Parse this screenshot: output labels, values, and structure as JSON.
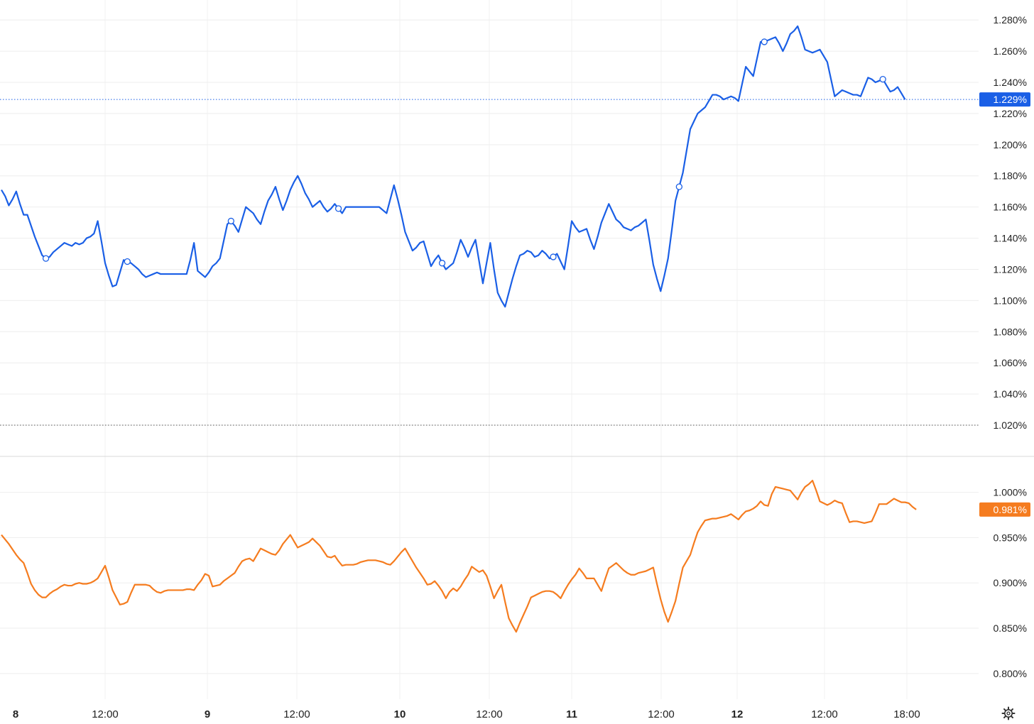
{
  "chart_data": [
    {
      "type": "line",
      "title": "",
      "xlabel": "",
      "ylabel": "",
      "ylim": [
        1.01,
        1.286
      ],
      "y_ticks": [
        "1.280%",
        "1.260%",
        "1.240%",
        "1.220%",
        "1.200%",
        "1.180%",
        "1.160%",
        "1.140%",
        "1.120%",
        "1.100%",
        "1.080%",
        "1.060%",
        "1.040%",
        "1.020%"
      ],
      "grid": true,
      "legend": "none",
      "reference_lines": [
        1.229,
        1.02
      ],
      "last_value_label": "1.229%",
      "color": "#1a5fe6",
      "series": [
        {
          "values": [
            1.171,
            1.167,
            1.161,
            1.165,
            1.17,
            1.162,
            1.155,
            1.155,
            1.148,
            1.141,
            1.135,
            1.129,
            1.127,
            1.128,
            1.131,
            1.133,
            1.135,
            1.137,
            1.136,
            1.135,
            1.137,
            1.136,
            1.137,
            1.14,
            1.141,
            1.143,
            1.151,
            1.138,
            1.124,
            1.116,
            1.109,
            1.11,
            1.118,
            1.126,
            1.125,
            1.124,
            1.122,
            1.12,
            1.117,
            1.115,
            1.116,
            1.117,
            1.118,
            1.117,
            1.117,
            1.117,
            1.117,
            1.117,
            1.117,
            1.117,
            1.117,
            1.126,
            1.137,
            1.119,
            1.117,
            1.115,
            1.118,
            1.122,
            1.124,
            1.127,
            1.138,
            1.149,
            1.151,
            1.148,
            1.144,
            1.152,
            1.16,
            1.158,
            1.156,
            1.152,
            1.149,
            1.157,
            1.164,
            1.168,
            1.173,
            1.165,
            1.158,
            1.164,
            1.171,
            1.176,
            1.18,
            1.175,
            1.169,
            1.165,
            1.16,
            1.162,
            1.164,
            1.16,
            1.157,
            1.159,
            1.162,
            1.159,
            1.156,
            1.16,
            1.16,
            1.16,
            1.16,
            1.16,
            1.16,
            1.16,
            1.16,
            1.16,
            1.16,
            1.158,
            1.156,
            1.165,
            1.174,
            1.165,
            1.155,
            1.144,
            1.138,
            1.132,
            1.134,
            1.137,
            1.138,
            1.13,
            1.122,
            1.126,
            1.129,
            1.124,
            1.12,
            1.122,
            1.124,
            1.131,
            1.139,
            1.134,
            1.128,
            1.134,
            1.139,
            1.125,
            1.111,
            1.124,
            1.137,
            1.12,
            1.105,
            1.1,
            1.096,
            1.105,
            1.114,
            1.122,
            1.129,
            1.13,
            1.132,
            1.131,
            1.128,
            1.129,
            1.132,
            1.13,
            1.127,
            1.128,
            1.13,
            1.125,
            1.12,
            1.135,
            1.151,
            1.147,
            1.144,
            1.145,
            1.146,
            1.139,
            1.133,
            1.141,
            1.15,
            1.156,
            1.162,
            1.157,
            1.152,
            1.15,
            1.147,
            1.146,
            1.145,
            1.147,
            1.148,
            1.15,
            1.152,
            1.138,
            1.123,
            1.114,
            1.106,
            1.116,
            1.127,
            1.145,
            1.164,
            1.173,
            1.182,
            1.196,
            1.21,
            1.215,
            1.22,
            1.222,
            1.224,
            1.228,
            1.232,
            1.232,
            1.231,
            1.229,
            1.23,
            1.231,
            1.23,
            1.228,
            1.239,
            1.25,
            1.247,
            1.244,
            1.255,
            1.266,
            1.266,
            1.267,
            1.268,
            1.269,
            1.265,
            1.26,
            1.265,
            1.271,
            1.273,
            1.276,
            1.269,
            1.261,
            1.26,
            1.259,
            1.26,
            1.261,
            1.257,
            1.253,
            1.242,
            1.231,
            1.233,
            1.235,
            1.234,
            1.233,
            1.232,
            1.232,
            1.231,
            1.237,
            1.243,
            1.242,
            1.24,
            1.241,
            1.242,
            1.238,
            1.234,
            1.235,
            1.237,
            1.233,
            1.229
          ]
        }
      ],
      "marker_indices": [
        12,
        34,
        62,
        91,
        119,
        149,
        183,
        206,
        238
      ]
    },
    {
      "type": "line",
      "title": "",
      "xlabel": "",
      "ylabel": "",
      "ylim": [
        0.785,
        1.013
      ],
      "y_ticks": [
        "1.000%",
        "0.950%",
        "0.900%",
        "0.850%",
        "0.800%"
      ],
      "grid": true,
      "legend": "none",
      "last_value_label": "0.981%",
      "color": "#f57c1f",
      "series": [
        {
          "values": [
            0.953,
            0.948,
            0.943,
            0.937,
            0.931,
            0.926,
            0.922,
            0.911,
            0.899,
            0.892,
            0.887,
            0.884,
            0.884,
            0.888,
            0.891,
            0.893,
            0.896,
            0.898,
            0.897,
            0.897,
            0.899,
            0.9,
            0.899,
            0.899,
            0.9,
            0.902,
            0.905,
            0.912,
            0.919,
            0.906,
            0.892,
            0.884,
            0.876,
            0.877,
            0.879,
            0.889,
            0.898,
            0.898,
            0.898,
            0.898,
            0.897,
            0.893,
            0.89,
            0.889,
            0.891,
            0.892,
            0.892,
            0.892,
            0.892,
            0.892,
            0.893,
            0.893,
            0.892,
            0.898,
            0.903,
            0.91,
            0.908,
            0.896,
            0.897,
            0.898,
            0.902,
            0.905,
            0.908,
            0.911,
            0.918,
            0.924,
            0.926,
            0.927,
            0.924,
            0.931,
            0.938,
            0.936,
            0.934,
            0.932,
            0.931,
            0.936,
            0.943,
            0.948,
            0.953,
            0.946,
            0.939,
            0.941,
            0.943,
            0.945,
            0.949,
            0.945,
            0.941,
            0.935,
            0.929,
            0.928,
            0.93,
            0.924,
            0.919,
            0.92,
            0.92,
            0.92,
            0.921,
            0.923,
            0.924,
            0.925,
            0.925,
            0.925,
            0.924,
            0.923,
            0.921,
            0.92,
            0.924,
            0.929,
            0.934,
            0.938,
            0.931,
            0.924,
            0.917,
            0.911,
            0.905,
            0.898,
            0.899,
            0.902,
            0.897,
            0.891,
            0.883,
            0.89,
            0.894,
            0.891,
            0.896,
            0.903,
            0.909,
            0.918,
            0.915,
            0.912,
            0.914,
            0.908,
            0.896,
            0.883,
            0.891,
            0.898,
            0.879,
            0.861,
            0.853,
            0.846,
            0.856,
            0.865,
            0.874,
            0.884,
            0.886,
            0.888,
            0.89,
            0.891,
            0.891,
            0.89,
            0.887,
            0.883,
            0.891,
            0.898,
            0.904,
            0.909,
            0.916,
            0.911,
            0.905,
            0.905,
            0.905,
            0.898,
            0.891,
            0.904,
            0.916,
            0.919,
            0.922,
            0.918,
            0.914,
            0.911,
            0.909,
            0.909,
            0.911,
            0.912,
            0.913,
            0.915,
            0.917,
            0.899,
            0.882,
            0.868,
            0.857,
            0.868,
            0.88,
            0.899,
            0.917,
            0.924,
            0.931,
            0.944,
            0.956,
            0.963,
            0.969,
            0.97,
            0.971,
            0.971,
            0.972,
            0.973,
            0.974,
            0.976,
            0.973,
            0.97,
            0.975,
            0.979,
            0.98,
            0.982,
            0.985,
            0.99,
            0.986,
            0.985,
            0.998,
            1.006,
            1.005,
            1.004,
            1.003,
            1.002,
            0.997,
            0.992,
            1.0,
            1.006,
            1.009,
            1.013,
            1.002,
            0.99,
            0.988,
            0.986,
            0.988,
            0.991,
            0.989,
            0.988,
            0.977,
            0.967,
            0.968,
            0.968,
            0.967,
            0.966,
            0.967,
            0.968,
            0.977,
            0.987,
            0.987,
            0.987,
            0.99,
            0.993,
            0.991,
            0.989,
            0.989,
            0.988,
            0.984,
            0.981
          ]
        }
      ]
    }
  ],
  "x_axis": {
    "ticks": [
      {
        "label": "8",
        "day": true
      },
      {
        "label": "12:00",
        "day": false
      },
      {
        "label": "9",
        "day": true
      },
      {
        "label": "12:00",
        "day": false
      },
      {
        "label": "10",
        "day": true
      },
      {
        "label": "12:00",
        "day": false
      },
      {
        "label": "11",
        "day": true
      },
      {
        "label": "12:00",
        "day": false
      },
      {
        "label": "12",
        "day": true
      },
      {
        "label": "12:00",
        "day": false
      },
      {
        "label": "18:00",
        "day": false
      }
    ]
  },
  "icons": {
    "settings": "gear-icon"
  }
}
